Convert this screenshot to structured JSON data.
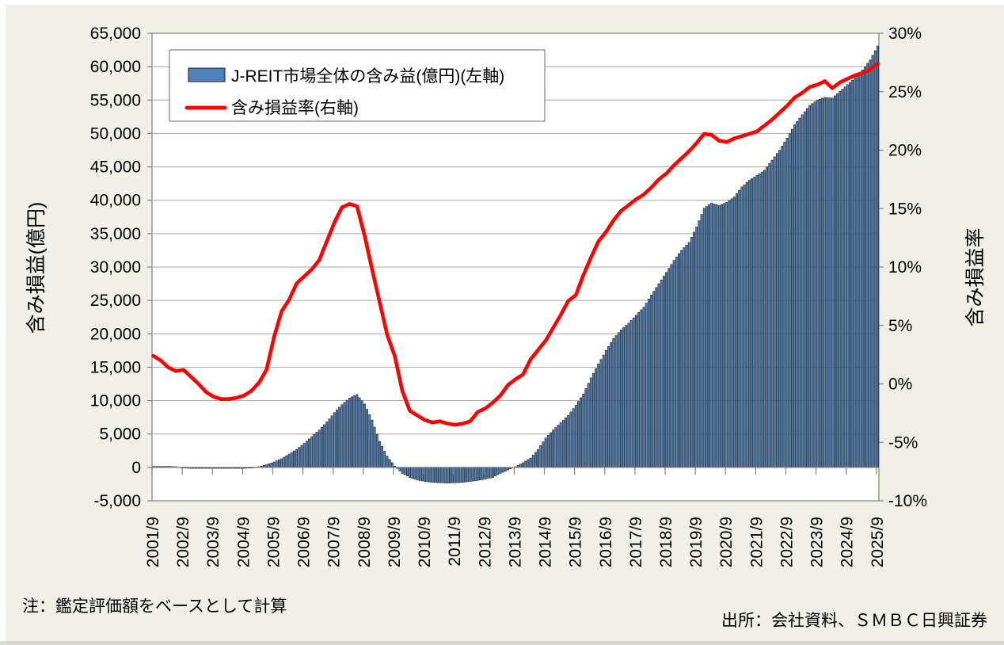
{
  "figure": {
    "note": "注：鑑定評価額をベースとして計算",
    "source": "出所：会社資料、ＳＭＢＣ日興証券"
  },
  "legend": {
    "bar_label": "J-REIT市場全体の含み益(億円)(左軸)",
    "line_label": "含み損益率(右軸)"
  },
  "colors": {
    "background": "#f1f0e6",
    "plot_background": "#ffffff",
    "gridline": "#a6a6a6",
    "axis_line": "#808080",
    "bar_fill": "#4f81bd",
    "bar_stroke": "#000000",
    "line_stroke": "#ff0000"
  },
  "chart_data": {
    "type": "combo",
    "sampling_note": "Original chart plots monthly bars from 2001/9 to 2025/9 (289 months); values below are quarterly estimates read from the chart and are linearly interpolated to monthly for rendering.",
    "months_per_sample": 3,
    "grid": true,
    "legend_position": "top-left inside plot",
    "categories": [
      "2001/9",
      "2001/12",
      "2002/3",
      "2002/6",
      "2002/9",
      "2002/12",
      "2003/3",
      "2003/6",
      "2003/9",
      "2003/12",
      "2004/3",
      "2004/6",
      "2004/9",
      "2004/12",
      "2005/3",
      "2005/6",
      "2005/9",
      "2005/12",
      "2006/3",
      "2006/6",
      "2006/9",
      "2006/12",
      "2007/3",
      "2007/6",
      "2007/9",
      "2007/12",
      "2008/3",
      "2008/6",
      "2008/9",
      "2008/12",
      "2009/3",
      "2009/6",
      "2009/9",
      "2009/12",
      "2010/3",
      "2010/6",
      "2010/9",
      "2010/12",
      "2011/3",
      "2011/6",
      "2011/9",
      "2011/12",
      "2012/3",
      "2012/6",
      "2012/9",
      "2012/12",
      "2013/3",
      "2013/6",
      "2013/9",
      "2013/12",
      "2014/3",
      "2014/6",
      "2014/9",
      "2014/12",
      "2015/3",
      "2015/6",
      "2015/9",
      "2015/12",
      "2016/3",
      "2016/6",
      "2016/9",
      "2016/12",
      "2017/3",
      "2017/6",
      "2017/9",
      "2017/12",
      "2018/3",
      "2018/6",
      "2018/9",
      "2018/12",
      "2019/3",
      "2019/6",
      "2019/9",
      "2019/12",
      "2020/3",
      "2020/6",
      "2020/9",
      "2020/12",
      "2021/3",
      "2021/6",
      "2021/9",
      "2021/12",
      "2022/3",
      "2022/6",
      "2022/9",
      "2022/12",
      "2023/3",
      "2023/6",
      "2023/9",
      "2023/12",
      "2024/3",
      "2024/6",
      "2024/9",
      "2024/12",
      "2025/3",
      "2025/6",
      "2025/9"
    ],
    "series": [
      {
        "name": "J-REIT市場全体の含み益(億円)(左軸)",
        "type": "bar",
        "axis": "left",
        "unit": "億円",
        "color": "#4f81bd",
        "values": [
          150,
          150,
          150,
          100,
          -100,
          -150,
          -150,
          -150,
          -150,
          -150,
          -150,
          -150,
          -150,
          -100,
          100,
          400,
          800,
          1300,
          2000,
          2700,
          3600,
          4600,
          5600,
          6800,
          8200,
          9400,
          10400,
          10900,
          9500,
          7100,
          3900,
          1700,
          200,
          -900,
          -1500,
          -1900,
          -2100,
          -2250,
          -2300,
          -2350,
          -2300,
          -2250,
          -2100,
          -1950,
          -1750,
          -1500,
          -900,
          -400,
          100,
          700,
          1400,
          2700,
          4400,
          5600,
          6700,
          7800,
          9300,
          11000,
          13400,
          15500,
          17500,
          19300,
          20600,
          21600,
          22800,
          24000,
          25800,
          27500,
          29200,
          31000,
          32500,
          33700,
          36000,
          38800,
          39600,
          39200,
          39700,
          40500,
          42000,
          43000,
          43700,
          44500,
          46000,
          47500,
          49300,
          51300,
          52800,
          54200,
          55000,
          55400,
          55300,
          56300,
          57300,
          58300,
          59500,
          61000,
          63100
        ]
      },
      {
        "name": "含み損益率(右軸)",
        "type": "line",
        "axis": "right",
        "unit": "%",
        "color": "#ff0000",
        "values": [
          2.4,
          2.0,
          1.4,
          1.1,
          1.2,
          0.6,
          0.0,
          -0.7,
          -1.1,
          -1.3,
          -1.3,
          -1.2,
          -1.0,
          -0.6,
          0.1,
          1.2,
          4.0,
          6.2,
          7.2,
          8.6,
          9.2,
          9.8,
          10.6,
          12.2,
          13.8,
          15.1,
          15.4,
          15.2,
          12.7,
          9.8,
          7.0,
          4.2,
          2.4,
          -0.6,
          -2.3,
          -2.7,
          -3.1,
          -3.3,
          -3.2,
          -3.4,
          -3.5,
          -3.4,
          -3.2,
          -2.4,
          -2.1,
          -1.6,
          -1.0,
          -0.1,
          0.4,
          0.8,
          2.1,
          2.9,
          3.7,
          4.8,
          5.9,
          7.1,
          7.6,
          9.3,
          10.8,
          12.2,
          13.0,
          14.0,
          14.8,
          15.3,
          15.8,
          16.2,
          16.8,
          17.5,
          18.0,
          18.7,
          19.3,
          19.9,
          20.6,
          21.4,
          21.3,
          20.8,
          20.7,
          21.0,
          21.2,
          21.4,
          21.6,
          22.1,
          22.6,
          23.2,
          23.8,
          24.5,
          24.9,
          25.4,
          25.6,
          25.9,
          25.3,
          25.8,
          26.1,
          26.4,
          26.6,
          26.9,
          27.4
        ]
      }
    ],
    "left_axis": {
      "label": "含み損益(億円)",
      "min": -5000,
      "max": 65000,
      "step": 5000,
      "tick_labels": [
        "-5,000",
        "0",
        "5,000",
        "10,000",
        "15,000",
        "20,000",
        "25,000",
        "30,000",
        "35,000",
        "40,000",
        "45,000",
        "50,000",
        "55,000",
        "60,000",
        "65,000"
      ]
    },
    "right_axis": {
      "label": "含み損益率",
      "min": -10,
      "max": 30,
      "step": 5,
      "tick_labels": [
        "-10%",
        "-5%",
        "0%",
        "5%",
        "10%",
        "15%",
        "20%",
        "25%",
        "30%"
      ]
    },
    "x_axis": {
      "tick_interval": "yearly",
      "tick_labels": [
        "2001/9",
        "2002/9",
        "2003/9",
        "2004/9",
        "2005/9",
        "2006/9",
        "2007/9",
        "2008/9",
        "2009/9",
        "2010/9",
        "2011/9",
        "2012/9",
        "2013/9",
        "2014/9",
        "2015/9",
        "2016/9",
        "2017/9",
        "2018/9",
        "2019/9",
        "2020/9",
        "2021/9",
        "2022/9",
        "2023/9",
        "2024/9",
        "2025/9"
      ]
    }
  }
}
